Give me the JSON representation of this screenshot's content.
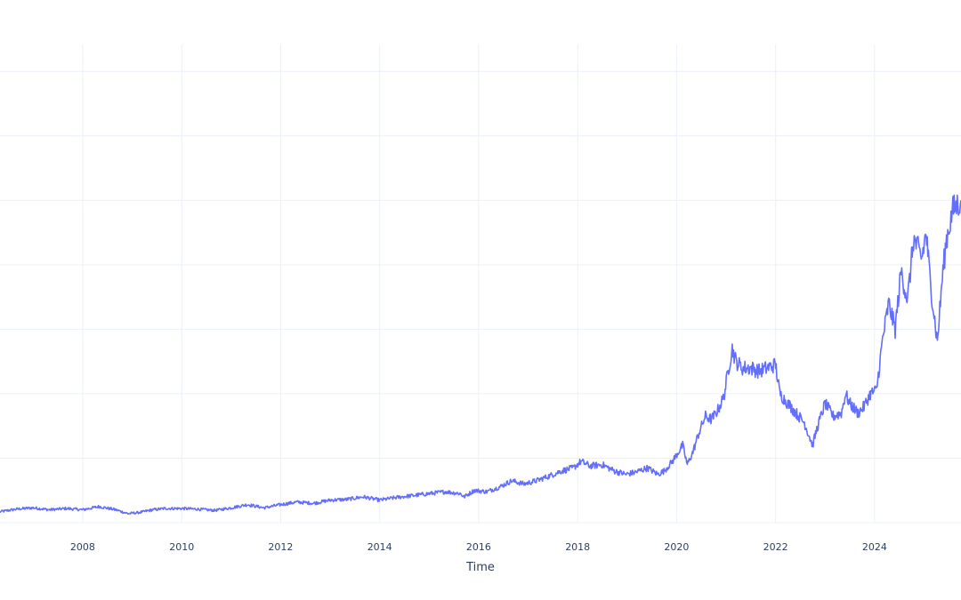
{
  "chart_data": {
    "type": "line",
    "title": "",
    "xlabel": "Time",
    "ylabel": "",
    "grid": true,
    "xlim": [
      "2006-05-01",
      "2025-09-30"
    ],
    "ylim": [
      0,
      7.5
    ],
    "x_ticks": [
      "2008",
      "2010",
      "2012",
      "2014",
      "2016",
      "2018",
      "2020",
      "2022",
      "2024"
    ],
    "y_gridlines": [
      1,
      2,
      3,
      4,
      5,
      6,
      7
    ],
    "series": [
      {
        "color": "#636efa",
        "x": [
          "2006-05-01",
          "2006-09-01",
          "2007-01-01",
          "2007-05-01",
          "2007-09-01",
          "2008-01-01",
          "2008-05-01",
          "2008-09-01",
          "2008-12-01",
          "2009-03-01",
          "2009-06-01",
          "2009-09-01",
          "2010-01-01",
          "2010-05-01",
          "2010-09-01",
          "2011-01-01",
          "2011-05-01",
          "2011-09-01",
          "2012-01-01",
          "2012-05-01",
          "2012-09-01",
          "2013-01-01",
          "2013-05-01",
          "2013-09-01",
          "2014-01-01",
          "2014-05-01",
          "2014-09-01",
          "2015-01-01",
          "2015-05-01",
          "2015-08-20",
          "2015-09-15",
          "2015-12-01",
          "2016-03-01",
          "2016-06-01",
          "2016-09-01",
          "2016-12-01",
          "2017-03-01",
          "2017-06-01",
          "2017-09-01",
          "2017-12-01",
          "2018-01-26",
          "2018-04-01",
          "2018-07-01",
          "2018-10-01",
          "2018-12-24",
          "2019-03-01",
          "2019-06-01",
          "2019-08-15",
          "2019-10-01",
          "2019-12-01",
          "2020-02-15",
          "2020-03-20",
          "2020-05-01",
          "2020-06-15",
          "2020-08-01",
          "2020-09-15",
          "2020-11-01",
          "2020-12-15",
          "2021-01-15",
          "2021-02-15",
          "2021-03-15",
          "2021-05-01",
          "2021-07-01",
          "2021-09-01",
          "2021-11-01",
          "2022-01-01",
          "2022-02-01",
          "2022-04-01",
          "2022-06-01",
          "2022-08-01",
          "2022-10-01",
          "2022-11-01",
          "2023-01-01",
          "2023-03-01",
          "2023-05-01",
          "2023-06-01",
          "2023-07-01",
          "2023-09-01",
          "2023-10-15",
          "2023-12-01",
          "2024-01-15",
          "2024-03-01",
          "2024-04-15",
          "2024-06-01",
          "2024-07-15",
          "2024-09-01",
          "2024-10-15",
          "2024-12-15",
          "2025-01-15",
          "2025-02-15",
          "2025-04-08",
          "2025-05-15",
          "2025-06-15",
          "2025-08-01",
          "2025-09-30"
        ],
        "y": [
          0.17,
          0.21,
          0.23,
          0.2,
          0.22,
          0.2,
          0.25,
          0.2,
          0.14,
          0.16,
          0.2,
          0.22,
          0.22,
          0.21,
          0.19,
          0.23,
          0.28,
          0.23,
          0.28,
          0.32,
          0.3,
          0.35,
          0.36,
          0.4,
          0.35,
          0.39,
          0.42,
          0.45,
          0.48,
          0.45,
          0.4,
          0.5,
          0.48,
          0.55,
          0.65,
          0.6,
          0.65,
          0.72,
          0.8,
          0.85,
          0.95,
          0.88,
          0.9,
          0.8,
          0.75,
          0.78,
          0.85,
          0.75,
          0.8,
          0.95,
          1.2,
          0.9,
          1.1,
          1.4,
          1.65,
          1.6,
          1.75,
          1.95,
          2.35,
          2.7,
          2.5,
          2.4,
          2.4,
          2.35,
          2.4,
          2.45,
          2.0,
          1.85,
          1.7,
          1.55,
          1.2,
          1.45,
          1.85,
          1.65,
          1.7,
          2.0,
          1.85,
          1.7,
          1.8,
          2.0,
          2.05,
          2.85,
          3.4,
          3.0,
          3.9,
          3.45,
          4.4,
          4.1,
          4.5,
          3.75,
          2.8,
          3.8,
          4.4,
          4.85,
          5.0
        ]
      }
    ]
  }
}
